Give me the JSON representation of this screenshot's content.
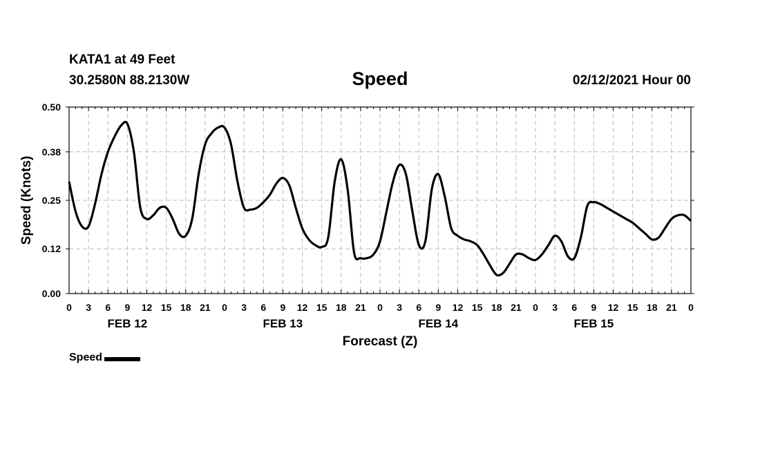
{
  "header": {
    "station": "KATA1 at 49 Feet",
    "coords": "30.2580N 88.2130W",
    "title": "Speed",
    "timestamp": "02/12/2021 Hour 00"
  },
  "legend": {
    "label": "Speed",
    "color": "#000000"
  },
  "chart_data": {
    "type": "line",
    "title": "Speed",
    "xlabel": "Forecast (Z)",
    "ylabel": "Speed (Knots)",
    "ylim": [
      0,
      0.5
    ],
    "yticks": [
      "0.00",
      "0.12",
      "0.25",
      "0.38",
      "0.50"
    ],
    "xlim": [
      0,
      96
    ],
    "x_tick_labels": [
      "0",
      "3",
      "6",
      "9",
      "12",
      "15",
      "18",
      "21",
      "0",
      "3",
      "6",
      "9",
      "12",
      "15",
      "18",
      "21",
      "0",
      "3",
      "6",
      "9",
      "12",
      "15",
      "18",
      "21",
      "0",
      "3",
      "6",
      "9",
      "12",
      "15",
      "18",
      "21",
      "0"
    ],
    "date_labels": [
      {
        "label": "FEB 12",
        "hour": 9
      },
      {
        "label": "FEB 13",
        "hour": 33
      },
      {
        "label": "FEB 14",
        "hour": 57
      },
      {
        "label": "FEB 15",
        "hour": 81
      }
    ],
    "grid": true,
    "series": [
      {
        "name": "Speed",
        "color": "#000000",
        "points": [
          [
            0,
            0.3
          ],
          [
            1,
            0.22
          ],
          [
            2,
            0.18
          ],
          [
            3,
            0.18
          ],
          [
            4,
            0.24
          ],
          [
            5,
            0.32
          ],
          [
            6,
            0.38
          ],
          [
            7,
            0.42
          ],
          [
            8,
            0.45
          ],
          [
            9,
            0.455
          ],
          [
            10,
            0.38
          ],
          [
            11,
            0.23
          ],
          [
            12,
            0.2
          ],
          [
            13,
            0.21
          ],
          [
            14,
            0.23
          ],
          [
            15,
            0.23
          ],
          [
            16,
            0.2
          ],
          [
            17,
            0.16
          ],
          [
            18,
            0.155
          ],
          [
            19,
            0.2
          ],
          [
            20,
            0.32
          ],
          [
            21,
            0.4
          ],
          [
            22,
            0.43
          ],
          [
            23,
            0.445
          ],
          [
            24,
            0.445
          ],
          [
            25,
            0.4
          ],
          [
            26,
            0.3
          ],
          [
            27,
            0.23
          ],
          [
            28,
            0.225
          ],
          [
            29,
            0.23
          ],
          [
            30,
            0.245
          ],
          [
            31,
            0.265
          ],
          [
            32,
            0.295
          ],
          [
            33,
            0.31
          ],
          [
            34,
            0.29
          ],
          [
            35,
            0.23
          ],
          [
            36,
            0.175
          ],
          [
            37,
            0.145
          ],
          [
            38,
            0.13
          ],
          [
            39,
            0.125
          ],
          [
            40,
            0.15
          ],
          [
            41,
            0.3
          ],
          [
            42,
            0.36
          ],
          [
            43,
            0.28
          ],
          [
            44,
            0.11
          ],
          [
            45,
            0.095
          ],
          [
            46,
            0.095
          ],
          [
            47,
            0.105
          ],
          [
            48,
            0.14
          ],
          [
            49,
            0.22
          ],
          [
            50,
            0.3
          ],
          [
            51,
            0.345
          ],
          [
            52,
            0.32
          ],
          [
            53,
            0.22
          ],
          [
            54,
            0.13
          ],
          [
            55,
            0.14
          ],
          [
            56,
            0.28
          ],
          [
            57,
            0.32
          ],
          [
            58,
            0.26
          ],
          [
            59,
            0.175
          ],
          [
            60,
            0.155
          ],
          [
            61,
            0.145
          ],
          [
            62,
            0.14
          ],
          [
            63,
            0.13
          ],
          [
            64,
            0.105
          ],
          [
            65,
            0.075
          ],
          [
            66,
            0.05
          ],
          [
            67,
            0.055
          ],
          [
            68,
            0.08
          ],
          [
            69,
            0.105
          ],
          [
            70,
            0.105
          ],
          [
            71,
            0.095
          ],
          [
            72,
            0.09
          ],
          [
            73,
            0.105
          ],
          [
            74,
            0.13
          ],
          [
            75,
            0.155
          ],
          [
            76,
            0.14
          ],
          [
            77,
            0.1
          ],
          [
            78,
            0.095
          ],
          [
            79,
            0.15
          ],
          [
            80,
            0.235
          ],
          [
            81,
            0.245
          ],
          [
            82,
            0.24
          ],
          [
            83,
            0.23
          ],
          [
            84,
            0.22
          ],
          [
            85,
            0.21
          ],
          [
            86,
            0.2
          ],
          [
            87,
            0.19
          ],
          [
            88,
            0.175
          ],
          [
            89,
            0.16
          ],
          [
            90,
            0.145
          ],
          [
            91,
            0.15
          ],
          [
            92,
            0.175
          ],
          [
            93,
            0.2
          ],
          [
            94,
            0.21
          ],
          [
            95,
            0.21
          ],
          [
            96,
            0.195
          ]
        ]
      }
    ]
  }
}
